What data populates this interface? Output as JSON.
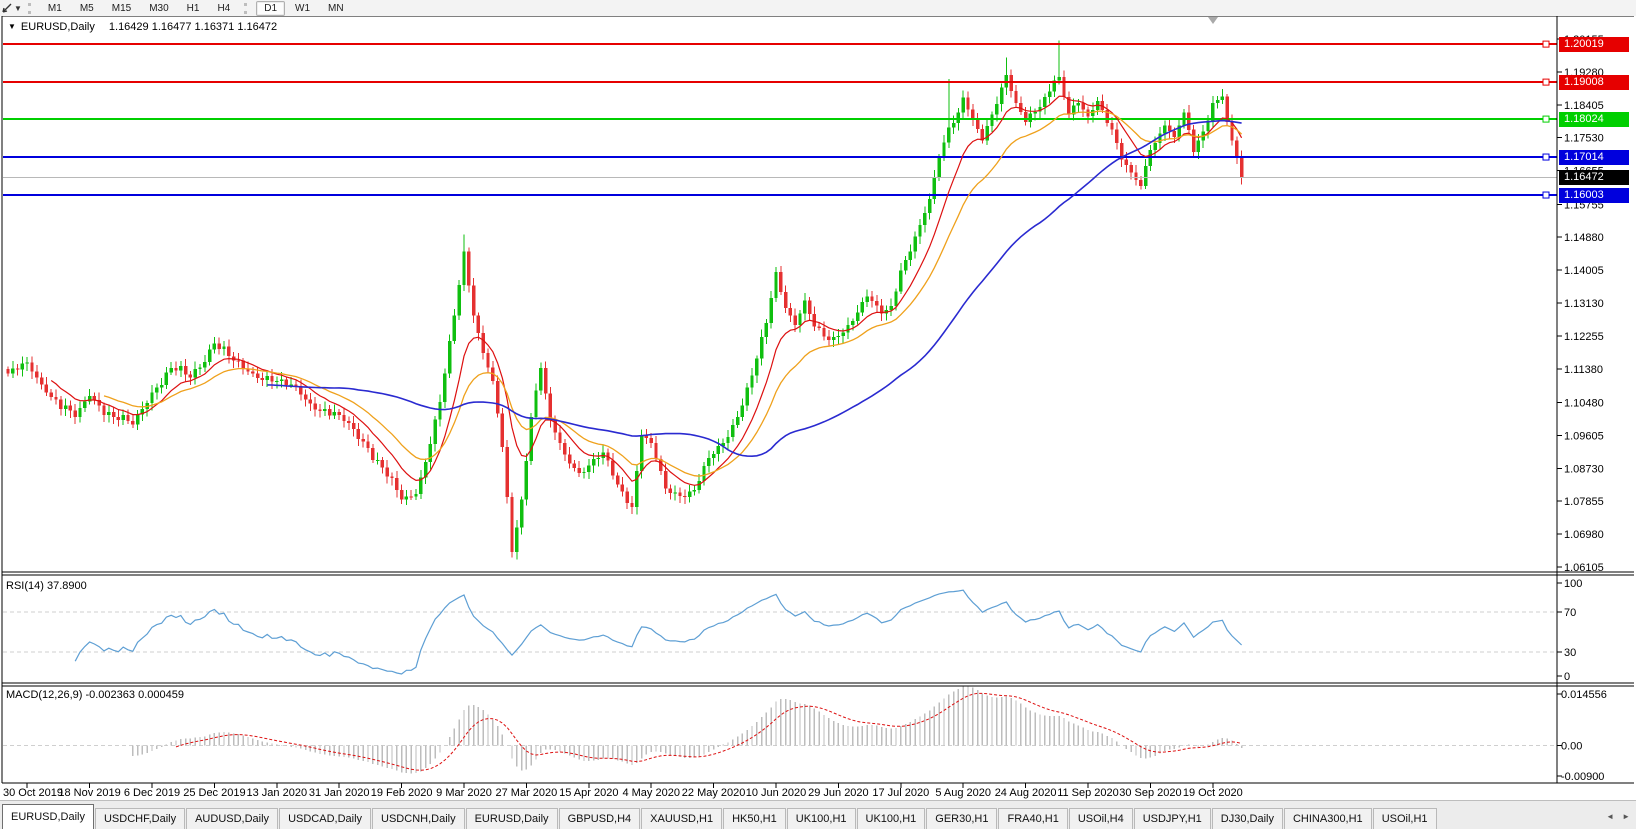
{
  "toolbar": {
    "timeframes": [
      "M1",
      "M5",
      "M15",
      "M30",
      "H1",
      "H4",
      "D1",
      "W1",
      "MN"
    ],
    "active_timeframe": "D1",
    "cursor_icon": "cursor-tool-icon",
    "dropdown_glyph": "▼"
  },
  "chart": {
    "title": "EURUSD,Daily",
    "title_marker": "▼",
    "ohlc_text": "1.16429 1.16477 1.16371 1.16472",
    "price_axis": [
      "1.20155",
      "1.19280",
      "1.18405",
      "1.17530",
      "1.16655",
      "1.15755",
      "1.14880",
      "1.14005",
      "1.13130",
      "1.12255",
      "1.11380",
      "1.10480",
      "1.09605",
      "1.08730",
      "1.07855",
      "1.06980",
      "1.06105"
    ],
    "levels": [
      {
        "price": 1.20019,
        "label": "1.20019",
        "color": "#e60000"
      },
      {
        "price": 1.19008,
        "label": "1.19008",
        "color": "#e60000"
      },
      {
        "price": 1.18024,
        "label": "1.18024",
        "color": "#00cf00"
      },
      {
        "price": 1.17014,
        "label": "1.17014",
        "color": "#0000dd"
      },
      {
        "price": 1.16003,
        "label": "1.16003",
        "color": "#0000dd"
      }
    ],
    "current_price": {
      "value": 1.16472,
      "label": "1.16472",
      "badge_bg": "#000000",
      "line_color": "#b8b8b8"
    },
    "colors": {
      "up": "#0fbf0f",
      "down": "#e53030",
      "grid": "#cfcfcf",
      "axis_text": "#000000",
      "background": "#ffffff"
    },
    "moving_averages": [
      {
        "period": 10,
        "type": "ema",
        "color": "#dd1010",
        "width": 1.2
      },
      {
        "period": 21,
        "type": "ema",
        "color": "#efa11c",
        "width": 1.3
      },
      {
        "period": 55,
        "type": "sma",
        "color": "#2a2ad0",
        "width": 1.6
      }
    ],
    "candles": {
      "count": 258,
      "anchors": [
        [
          0,
          1.1125
        ],
        [
          4,
          1.1155
        ],
        [
          8,
          1.1075
        ],
        [
          14,
          1.101
        ],
        [
          17,
          1.1065
        ],
        [
          22,
          1.101
        ],
        [
          26,
          1.099
        ],
        [
          30,
          1.1075
        ],
        [
          34,
          1.114
        ],
        [
          38,
          1.1115
        ],
        [
          43,
          1.1205
        ],
        [
          47,
          1.116
        ],
        [
          51,
          1.1125
        ],
        [
          56,
          1.1105
        ],
        [
          60,
          1.109
        ],
        [
          64,
          1.103
        ],
        [
          69,
          1.1015
        ],
        [
          74,
          1.0945
        ],
        [
          78,
          1.0875
        ],
        [
          82,
          1.079
        ],
        [
          85,
          1.0805
        ],
        [
          87,
          1.089
        ],
        [
          90,
          1.105
        ],
        [
          93,
          1.128
        ],
        [
          95,
          1.145
        ],
        [
          97,
          1.128
        ],
        [
          99,
          1.118
        ],
        [
          101,
          1.1105
        ],
        [
          103,
          1.093
        ],
        [
          105,
          1.065
        ],
        [
          107,
          1.079
        ],
        [
          109,
          1.101
        ],
        [
          111,
          1.114
        ],
        [
          113,
          1.1
        ],
        [
          116,
          1.091
        ],
        [
          119,
          1.086
        ],
        [
          121,
          1.088
        ],
        [
          124,
          1.0915
        ],
        [
          127,
          1.083
        ],
        [
          130,
          1.077
        ],
        [
          132,
          1.096
        ],
        [
          134,
          1.094
        ],
        [
          137,
          1.082
        ],
        [
          140,
          1.08
        ],
        [
          143,
          1.0815
        ],
        [
          146,
          1.09
        ],
        [
          149,
          1.094
        ],
        [
          152,
          1.101
        ],
        [
          155,
          1.112
        ],
        [
          158,
          1.126
        ],
        [
          160,
          1.1395
        ],
        [
          162,
          1.13
        ],
        [
          164,
          1.1255
        ],
        [
          166,
          1.132
        ],
        [
          168,
          1.125
        ],
        [
          171,
          1.1215
        ],
        [
          173,
          1.1225
        ],
        [
          176,
          1.1265
        ],
        [
          179,
          1.133
        ],
        [
          182,
          1.1285
        ],
        [
          184,
          1.1305
        ],
        [
          186,
          1.14
        ],
        [
          188,
          1.145
        ],
        [
          190,
          1.152
        ],
        [
          192,
          1.159
        ],
        [
          194,
          1.17
        ],
        [
          196,
          1.178
        ],
        [
          198,
          1.182
        ],
        [
          199,
          1.186
        ],
        [
          201,
          1.18
        ],
        [
          203,
          1.1745
        ],
        [
          205,
          1.1815
        ],
        [
          208,
          1.192
        ],
        [
          210,
          1.1845
        ],
        [
          212,
          1.1795
        ],
        [
          215,
          1.1835
        ],
        [
          218,
          1.1905
        ],
        [
          219,
          1.1915
        ],
        [
          221,
          1.1815
        ],
        [
          223,
          1.1845
        ],
        [
          225,
          1.181
        ],
        [
          227,
          1.185
        ],
        [
          230,
          1.1775
        ],
        [
          232,
          1.1695
        ],
        [
          234,
          1.166
        ],
        [
          236,
          1.1625
        ],
        [
          238,
          1.172
        ],
        [
          241,
          1.1785
        ],
        [
          243,
          1.1755
        ],
        [
          245,
          1.182
        ],
        [
          247,
          1.1715
        ],
        [
          249,
          1.177
        ],
        [
          251,
          1.1845
        ],
        [
          253,
          1.1862
        ],
        [
          254,
          1.1795
        ],
        [
          255,
          1.1745
        ],
        [
          256,
          1.17
        ],
        [
          257,
          1.16472
        ]
      ],
      "wick_overrides": {
        "82": {
          "low": 1.0778
        },
        "95": {
          "high": 1.1495
        },
        "105": {
          "low": 1.0636
        },
        "196": {
          "high": 1.1909
        },
        "208": {
          "high": 1.1966
        },
        "219": {
          "high": 1.2011
        }
      }
    }
  },
  "rsi": {
    "label": "RSI(14) 37.8900",
    "period": 14,
    "value": "37.8900",
    "axis": [
      "100",
      "70",
      "30",
      "0"
    ],
    "levels": [
      70,
      30
    ],
    "color": "#5e9fd4"
  },
  "macd": {
    "label": "MACD(12,26,9) -0.002363 0.000459",
    "fast": 12,
    "slow": 26,
    "signal": 9,
    "values": "-0.002363 0.000459",
    "axis": [
      "0.014556",
      "0.00",
      "-0.00900"
    ],
    "hist_color": "#bdbdbd",
    "signal_color": "#dd1010"
  },
  "x_axis": {
    "labels": [
      "30 Oct 2019",
      "18 Nov 2019",
      "6 Dec 2019",
      "25 Dec 2019",
      "13 Jan 2020",
      "31 Jan 2020",
      "19 Feb 2020",
      "9 Mar 2020",
      "27 Mar 2020",
      "15 Apr 2020",
      "4 May 2020",
      "22 May 2020",
      "10 Jun 2020",
      "29 Jun 2020",
      "17 Jul 2020",
      "5 Aug 2020",
      "24 Aug 2020",
      "11 Sep 2020",
      "30 Sep 2020",
      "19 Oct 2020"
    ]
  },
  "tabs": {
    "items": [
      "EURUSD,Daily",
      "USDCHF,Daily",
      "AUDUSD,Daily",
      "USDCAD,Daily",
      "USDCNH,Daily",
      "EURUSD,Daily",
      "GBPUSD,H4",
      "XAUUSD,H1",
      "HK50,H1",
      "UK100,H1",
      "UK100,H1",
      "GER30,H1",
      "FRA40,H1",
      "USOil,H4",
      "USDJPY,H1",
      "DJ30,Daily",
      "CHINA300,H1",
      "USOil,H1"
    ],
    "active_index": 0,
    "nav_prev": "◄",
    "nav_next": "►"
  }
}
